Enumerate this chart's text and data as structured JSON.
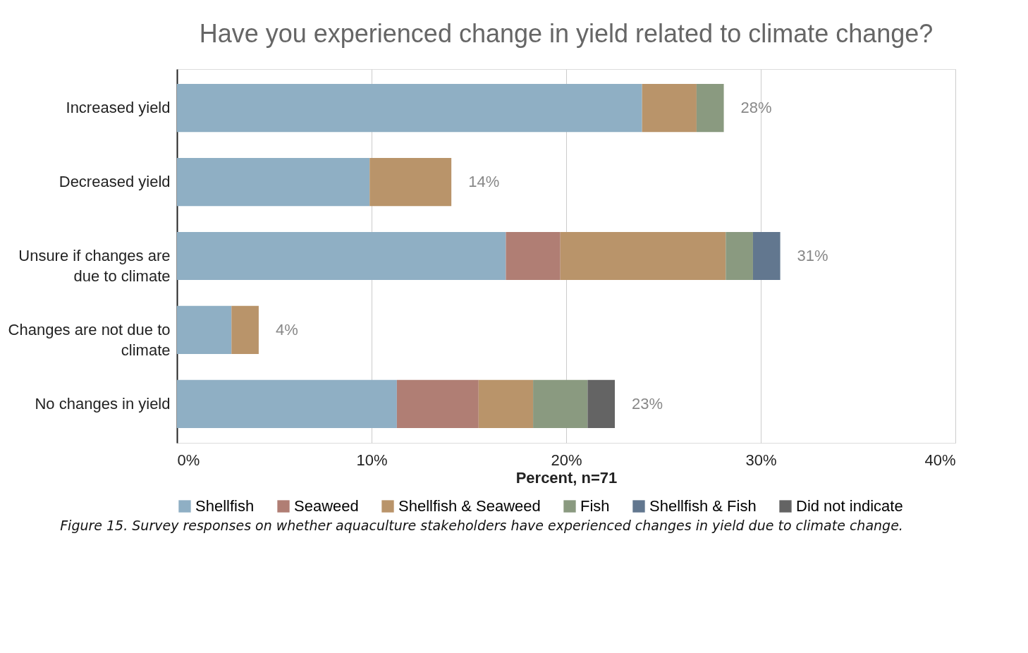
{
  "chart_data": {
    "type": "bar",
    "orientation": "horizontal",
    "stacked": true,
    "title": "Have you experienced change in yield related to climate change?",
    "xlabel": "Percent, n=71",
    "categories": [
      "Increased yield",
      "Decreased yield",
      "Unsure if changes are\ndue to climate",
      "Changes are not due to\nclimate",
      "No changes in yield"
    ],
    "series": [
      {
        "name": "Shellfish",
        "color": "#8fafc4",
        "values": [
          23.9,
          9.9,
          16.9,
          2.8,
          11.3
        ]
      },
      {
        "name": "Seaweed",
        "color": "#b07e74",
        "values": [
          0,
          0,
          2.8,
          0,
          4.2
        ]
      },
      {
        "name": "Shellfish & Seaweed",
        "color": "#b9946a",
        "values": [
          2.8,
          4.2,
          8.5,
          1.4,
          2.8
        ]
      },
      {
        "name": "Fish",
        "color": "#8a9a80",
        "values": [
          1.4,
          0,
          1.4,
          0,
          2.8
        ]
      },
      {
        "name": "Shellfish & Fish",
        "color": "#62778f",
        "values": [
          0,
          0,
          1.4,
          0,
          0
        ]
      },
      {
        "name": "Did not indicate",
        "color": "#646464",
        "values": [
          0,
          0,
          0,
          0,
          1.4
        ]
      }
    ],
    "totals": [
      "28%",
      "14%",
      "31%",
      "4%",
      "23%"
    ],
    "xlim": [
      0,
      40
    ],
    "xticks": [
      {
        "value": 0,
        "label": "0%"
      },
      {
        "value": 10,
        "label": "10%"
      },
      {
        "value": 20,
        "label": "20%"
      },
      {
        "value": 30,
        "label": "30%"
      },
      {
        "value": 40,
        "label": "40%"
      }
    ],
    "grid": "x",
    "legend": "bottom",
    "annotations": [
      "Figure 15. Survey responses on whether aquaculture stakeholders have experienced changes in yield due to climate change."
    ]
  }
}
